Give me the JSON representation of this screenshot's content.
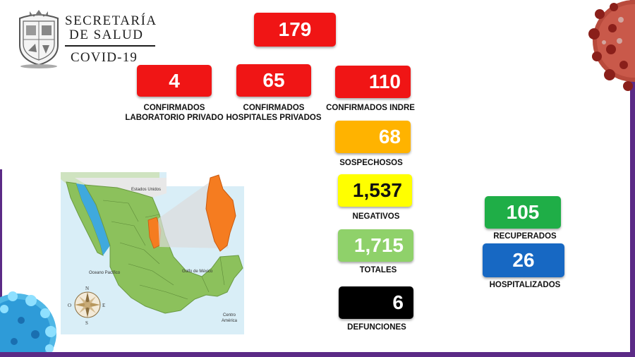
{
  "header": {
    "line1": "SECRETARÍA",
    "line2": "DE SALUD",
    "line3": "COVID-19"
  },
  "colors": {
    "red": "#f01515",
    "orange": "#ffb300",
    "yellow": "#ffff00",
    "light_green": "#8fd16a",
    "green": "#1fae47",
    "blue": "#1768c3",
    "black": "#000000",
    "frame_purple": "#5b2a86",
    "map_green": "#8cc15c",
    "map_orange": "#f57c20",
    "water_blue": "#3fa9dd"
  },
  "stats": {
    "total_confirmed": {
      "value": "179"
    },
    "private_lab": {
      "value": "4",
      "label_line1": "CONFIRMADOS",
      "label_line2": "LABORATORIO PRIVADO"
    },
    "private_hospitals": {
      "value": "65",
      "label_line1": "CONFIRMADOS",
      "label_line2": "HOSPITALES PRIVADOS"
    },
    "indre": {
      "value": "110",
      "label": "CONFIRMADOS INDRE"
    },
    "suspected": {
      "value": "68",
      "label": "SOSPECHOSOS"
    },
    "negative": {
      "value": "1,537",
      "label": "NEGATIVOS"
    },
    "totals": {
      "value": "1,715",
      "label": "TOTALES"
    },
    "deaths": {
      "value": "6",
      "label": "DEFUNCIONES"
    },
    "recovered": {
      "value": "105",
      "label": "RECUPERADOS"
    },
    "hospitalized": {
      "value": "26",
      "label": "HOSPITALIZADOS"
    }
  },
  "map": {
    "labels": {
      "usa": "Estados Unidos",
      "pacific": "Oceano Pacífico",
      "gulf": "Golfo de México",
      "central_america_1": "Centro",
      "central_america_2": "América"
    },
    "compass": {
      "n": "N",
      "s": "S",
      "e": "E",
      "o": "O"
    }
  },
  "icons": [
    "state-seal-icon",
    "coronavirus-red-icon",
    "coronavirus-blue-icon",
    "compass-rose-icon"
  ]
}
